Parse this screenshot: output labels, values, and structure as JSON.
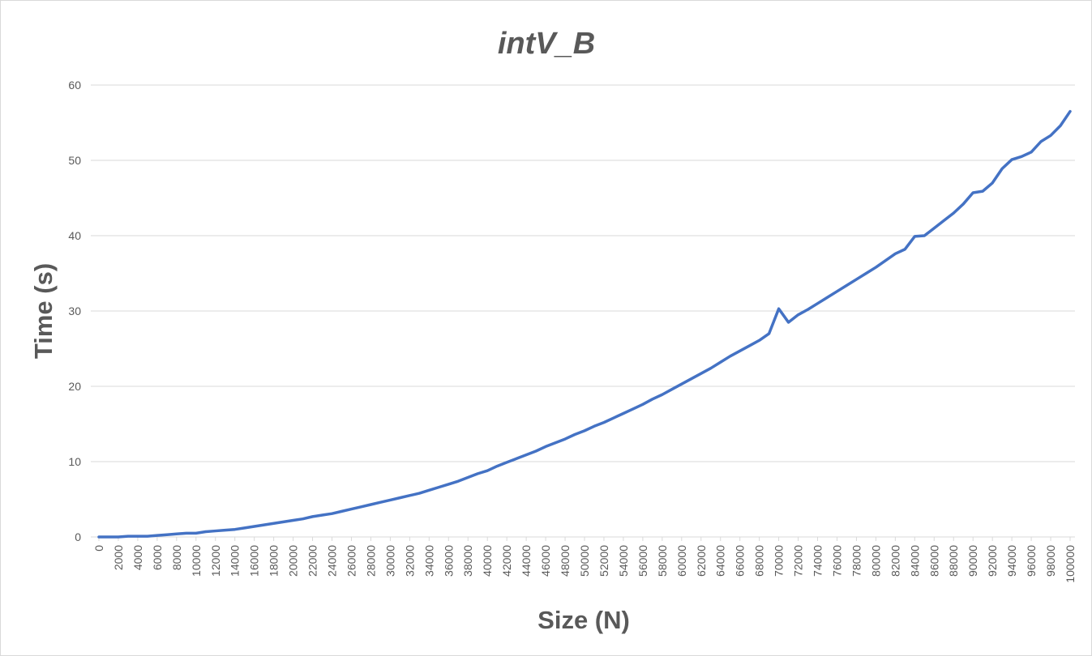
{
  "chart_data": {
    "type": "line",
    "title": "intV_B",
    "x_label": "Size (N)",
    "y_label": "Time (s)",
    "x": [
      0,
      1000,
      2000,
      3000,
      4000,
      5000,
      6000,
      7000,
      8000,
      9000,
      10000,
      11000,
      12000,
      13000,
      14000,
      15000,
      16000,
      17000,
      18000,
      19000,
      20000,
      21000,
      22000,
      23000,
      24000,
      25000,
      26000,
      27000,
      28000,
      29000,
      30000,
      31000,
      32000,
      33000,
      34000,
      35000,
      36000,
      37000,
      38000,
      39000,
      40000,
      41000,
      42000,
      43000,
      44000,
      45000,
      46000,
      47000,
      48000,
      49000,
      50000,
      51000,
      52000,
      53000,
      54000,
      55000,
      56000,
      57000,
      58000,
      59000,
      60000,
      61000,
      62000,
      63000,
      64000,
      65000,
      66000,
      67000,
      68000,
      69000,
      70000,
      71000,
      72000,
      73000,
      74000,
      75000,
      76000,
      77000,
      78000,
      79000,
      80000,
      81000,
      82000,
      83000,
      84000,
      85000,
      86000,
      87000,
      88000,
      89000,
      90000,
      91000,
      92000,
      93000,
      94000,
      95000,
      96000,
      97000,
      98000,
      99000,
      100000
    ],
    "series": [
      {
        "name": "intV_B",
        "color": "#4472c4",
        "values": [
          0,
          0,
          0,
          0.1,
          0.1,
          0.1,
          0.2,
          0.3,
          0.4,
          0.5,
          0.5,
          0.7,
          0.8,
          0.9,
          1.0,
          1.2,
          1.4,
          1.6,
          1.8,
          2.0,
          2.2,
          2.4,
          2.7,
          2.9,
          3.1,
          3.4,
          3.7,
          4.0,
          4.3,
          4.6,
          4.9,
          5.2,
          5.5,
          5.8,
          6.2,
          6.6,
          7.0,
          7.4,
          7.9,
          8.4,
          8.8,
          9.4,
          9.9,
          10.4,
          10.9,
          11.4,
          12.0,
          12.5,
          13.0,
          13.6,
          14.1,
          14.7,
          15.2,
          15.8,
          16.4,
          17.0,
          17.6,
          18.3,
          18.9,
          19.6,
          20.3,
          21.0,
          21.7,
          22.4,
          23.2,
          24.0,
          24.7,
          25.4,
          26.1,
          27.0,
          30.3,
          28.5,
          29.5,
          30.2,
          31.0,
          31.8,
          32.6,
          33.4,
          34.2,
          35.0,
          35.8,
          36.7,
          37.6,
          38.2,
          39.9,
          40.0,
          41.0,
          42.0,
          43.0,
          44.2,
          45.7,
          45.9,
          47.0,
          48.9,
          50.1,
          50.5,
          51.1,
          52.5,
          53.3,
          54.6,
          56.5
        ]
      }
    ],
    "xlim": [
      0,
      100000
    ],
    "xticks": [
      0,
      2000,
      4000,
      6000,
      8000,
      10000,
      12000,
      14000,
      16000,
      18000,
      20000,
      22000,
      24000,
      26000,
      28000,
      30000,
      32000,
      34000,
      36000,
      38000,
      40000,
      42000,
      44000,
      46000,
      48000,
      50000,
      52000,
      54000,
      56000,
      58000,
      60000,
      62000,
      64000,
      66000,
      68000,
      70000,
      72000,
      74000,
      76000,
      78000,
      80000,
      82000,
      84000,
      86000,
      88000,
      90000,
      92000,
      94000,
      96000,
      98000,
      100000
    ],
    "ylim": [
      0,
      60
    ],
    "yticks": [
      0,
      10,
      20,
      30,
      40,
      50,
      60
    ],
    "grid": true
  }
}
